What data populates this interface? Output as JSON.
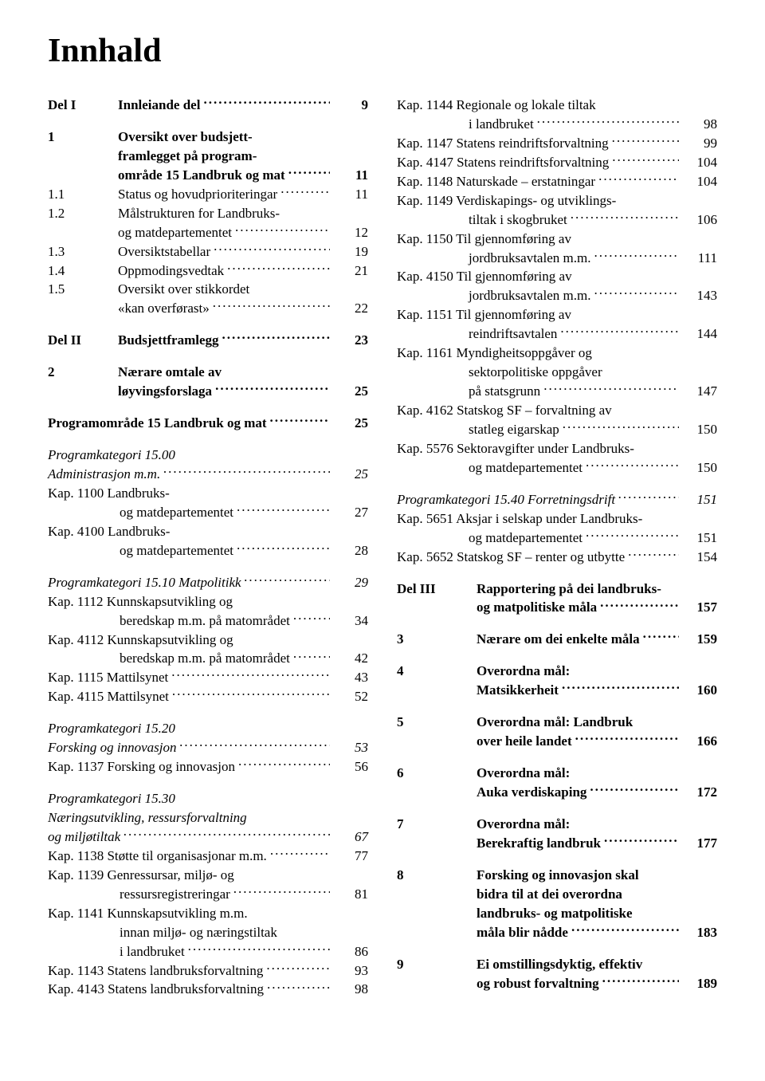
{
  "title": "Innhald",
  "left": [
    {
      "type": "row",
      "cls": "bold",
      "prefix": "Del I",
      "prefixCls": "prefix",
      "text": "Innleiande del",
      "page": "9"
    },
    {
      "type": "spacer"
    },
    {
      "type": "row",
      "cls": "bold",
      "prefix": "1",
      "prefixCls": "prefix",
      "text": "Oversikt over budsjett-",
      "noPage": true
    },
    {
      "type": "row",
      "cls": "bold indent-cont",
      "text": "framlegget på program-",
      "noPage": true
    },
    {
      "type": "row",
      "cls": "bold indent-cont",
      "text": "område 15 Landbruk og mat",
      "page": "11"
    },
    {
      "type": "row",
      "prefix": "1.1",
      "prefixCls": "prefix",
      "text": "Status og hovudprioriteringar",
      "page": "11"
    },
    {
      "type": "row",
      "prefix": "1.2",
      "prefixCls": "prefix",
      "text": "Målstrukturen for Landbruks-",
      "noPage": true
    },
    {
      "type": "row",
      "cls": "indent-cont",
      "text": "og matdepartementet",
      "page": "12"
    },
    {
      "type": "row",
      "prefix": "1.3",
      "prefixCls": "prefix",
      "text": "Oversiktstabellar",
      "page": "19"
    },
    {
      "type": "row",
      "prefix": "1.4",
      "prefixCls": "prefix",
      "text": "Oppmodingsvedtak",
      "page": "21"
    },
    {
      "type": "row",
      "prefix": "1.5",
      "prefixCls": "prefix",
      "text": "Oversikt over stikkordet",
      "noPage": true
    },
    {
      "type": "row",
      "cls": "indent-cont",
      "text": "«kan overførast»",
      "page": "22"
    },
    {
      "type": "spacer"
    },
    {
      "type": "row",
      "cls": "bold",
      "prefix": "Del II",
      "prefixCls": "prefix",
      "text": "Budsjettframlegg",
      "page": "23"
    },
    {
      "type": "spacer"
    },
    {
      "type": "row",
      "cls": "bold",
      "prefix": "2",
      "prefixCls": "prefix",
      "text": "Nærare omtale av",
      "noPage": true
    },
    {
      "type": "row",
      "cls": "bold indent-cont",
      "text": "løyvingsforslaga",
      "page": "25"
    },
    {
      "type": "spacer"
    },
    {
      "type": "row",
      "cls": "bold",
      "text": "Programområde 15 Landbruk og mat",
      "page": "25"
    },
    {
      "type": "spacer"
    },
    {
      "type": "row",
      "cls": "italic",
      "text": "Programkategori 15.00",
      "noPage": true
    },
    {
      "type": "row",
      "cls": "italic",
      "text": "Administrasjon m.m.",
      "page": "25"
    },
    {
      "type": "row",
      "text": "Kap. 1100 Landbruks-",
      "noPage": true
    },
    {
      "type": "row",
      "cls": "indent-kap",
      "text": "og matdepartementet",
      "page": "27"
    },
    {
      "type": "row",
      "text": "Kap. 4100 Landbruks-",
      "noPage": true
    },
    {
      "type": "row",
      "cls": "indent-kap",
      "text": "og matdepartementet",
      "page": "28"
    },
    {
      "type": "spacer"
    },
    {
      "type": "row",
      "cls": "italic",
      "text": "Programkategori 15.10 Matpolitikk",
      "page": "29"
    },
    {
      "type": "row",
      "text": "Kap. 1112 Kunnskapsutvikling og",
      "noPage": true
    },
    {
      "type": "row",
      "cls": "indent-kap",
      "text": "beredskap m.m. på matområdet",
      "page": "34"
    },
    {
      "type": "row",
      "text": "Kap. 4112 Kunnskapsutvikling og",
      "noPage": true
    },
    {
      "type": "row",
      "cls": "indent-kap",
      "text": "beredskap m.m. på matområdet",
      "page": "42"
    },
    {
      "type": "row",
      "text": "Kap. 1115 Mattilsynet",
      "page": "43"
    },
    {
      "type": "row",
      "text": "Kap. 4115 Mattilsynet",
      "page": "52"
    },
    {
      "type": "spacer"
    },
    {
      "type": "row",
      "cls": "italic",
      "text": "Programkategori 15.20",
      "noPage": true
    },
    {
      "type": "row",
      "cls": "italic",
      "text": "Forsking og innovasjon",
      "page": "53"
    },
    {
      "type": "row",
      "text": "Kap. 1137 Forsking og innovasjon",
      "page": "56"
    },
    {
      "type": "spacer"
    },
    {
      "type": "row",
      "cls": "italic",
      "text": "Programkategori 15.30",
      "noPage": true
    },
    {
      "type": "row",
      "cls": "italic",
      "text": "Næringsutvikling, ressursforvaltning",
      "noPage": true
    },
    {
      "type": "row",
      "cls": "italic",
      "text": "og miljøtiltak",
      "page": "67"
    },
    {
      "type": "row",
      "text": "Kap. 1138 Støtte til organisasjonar m.m.",
      "page": "77"
    },
    {
      "type": "row",
      "text": "Kap. 1139 Genressursar, miljø- og",
      "noPage": true
    },
    {
      "type": "row",
      "cls": "indent-kap",
      "text": "ressursregistreringar",
      "page": "81"
    },
    {
      "type": "row",
      "text": "Kap. 1141 Kunnskapsutvikling m.m.",
      "noPage": true
    },
    {
      "type": "row",
      "cls": "indent-kap",
      "text": "innan miljø- og næringstiltak",
      "noPage": true
    },
    {
      "type": "row",
      "cls": "indent-kap",
      "text": "i landbruket",
      "page": "86"
    },
    {
      "type": "row",
      "text": "Kap. 1143 Statens landbruksforvaltning",
      "page": "93"
    },
    {
      "type": "row",
      "text": "Kap. 4143 Statens landbruksforvaltning",
      "page": "98"
    }
  ],
  "right": [
    {
      "type": "row",
      "text": "Kap. 1144 Regionale og lokale tiltak",
      "noPage": true
    },
    {
      "type": "row",
      "cls": "indent-kap",
      "text": "i landbruket",
      "page": "98"
    },
    {
      "type": "row",
      "text": "Kap. 1147 Statens reindriftsforvaltning",
      "page": "99"
    },
    {
      "type": "row",
      "text": "Kap. 4147 Statens reindriftsforvaltning",
      "page": "104"
    },
    {
      "type": "row",
      "text": "Kap. 1148 Naturskade – erstatningar",
      "page": "104"
    },
    {
      "type": "row",
      "text": "Kap. 1149 Verdiskapings- og utviklings-",
      "noPage": true
    },
    {
      "type": "row",
      "cls": "indent-kap",
      "text": "tiltak i skogbruket",
      "page": "106"
    },
    {
      "type": "row",
      "text": "Kap. 1150 Til gjennomføring av",
      "noPage": true
    },
    {
      "type": "row",
      "cls": "indent-kap",
      "text": "jordbruksavtalen m.m.",
      "page": "111"
    },
    {
      "type": "row",
      "text": "Kap. 4150 Til gjennomføring av",
      "noPage": true
    },
    {
      "type": "row",
      "cls": "indent-kap",
      "text": "jordbruksavtalen m.m.",
      "page": "143"
    },
    {
      "type": "row",
      "text": "Kap. 1151 Til gjennomføring av",
      "noPage": true
    },
    {
      "type": "row",
      "cls": "indent-kap",
      "text": "reindriftsavtalen",
      "page": "144"
    },
    {
      "type": "row",
      "text": "Kap. 1161 Myndigheitsoppgåver og",
      "noPage": true
    },
    {
      "type": "row",
      "cls": "indent-kap",
      "text": "sektorpolitiske oppgåver",
      "noPage": true
    },
    {
      "type": "row",
      "cls": "indent-kap",
      "text": "på statsgrunn",
      "page": "147"
    },
    {
      "type": "row",
      "text": "Kap. 4162 Statskog SF – forvaltning av",
      "noPage": true
    },
    {
      "type": "row",
      "cls": "indent-kap",
      "text": "statleg eigarskap",
      "page": "150"
    },
    {
      "type": "row",
      "text": "Kap. 5576 Sektoravgifter under Landbruks-",
      "noPage": true
    },
    {
      "type": "row",
      "cls": "indent-kap",
      "text": "og matdepartementet",
      "page": "150"
    },
    {
      "type": "spacer"
    },
    {
      "type": "row",
      "cls": "italic",
      "text": "Programkategori 15.40 Forretningsdrift",
      "page": "151"
    },
    {
      "type": "row",
      "text": "Kap. 5651 Aksjar i selskap under Landbruks-",
      "noPage": true
    },
    {
      "type": "row",
      "cls": "indent-kap",
      "text": "og matdepartementet",
      "page": "151"
    },
    {
      "type": "row",
      "text": "Kap. 5652 Statskog SF – renter og utbytte",
      "page": "154"
    },
    {
      "type": "spacer"
    },
    {
      "type": "row",
      "cls": "bold",
      "prefix": "Del III",
      "prefixCls": "prefix-wide",
      "text": "Rapportering på dei landbruks-",
      "noPage": true
    },
    {
      "type": "row",
      "cls": "bold indent-cont-wide",
      "text": "og matpolitiske måla",
      "page": "157"
    },
    {
      "type": "spacer"
    },
    {
      "type": "row",
      "cls": "bold",
      "prefix": "3",
      "prefixCls": "prefix-wide",
      "text": "Nærare om dei enkelte måla",
      "page": "159"
    },
    {
      "type": "spacer"
    },
    {
      "type": "row",
      "cls": "bold",
      "prefix": "4",
      "prefixCls": "prefix-wide",
      "text": "Overordna mål:",
      "noPage": true
    },
    {
      "type": "row",
      "cls": "bold indent-cont-wide",
      "text": "Matsikkerheit",
      "page": "160"
    },
    {
      "type": "spacer"
    },
    {
      "type": "row",
      "cls": "bold",
      "prefix": "5",
      "prefixCls": "prefix-wide",
      "text": "Overordna mål: Landbruk",
      "noPage": true
    },
    {
      "type": "row",
      "cls": "bold indent-cont-wide",
      "text": "over heile landet",
      "page": "166"
    },
    {
      "type": "spacer"
    },
    {
      "type": "row",
      "cls": "bold",
      "prefix": "6",
      "prefixCls": "prefix-wide",
      "text": "Overordna mål:",
      "noPage": true
    },
    {
      "type": "row",
      "cls": "bold indent-cont-wide",
      "text": "Auka verdiskaping",
      "page": "172"
    },
    {
      "type": "spacer"
    },
    {
      "type": "row",
      "cls": "bold",
      "prefix": "7",
      "prefixCls": "prefix-wide",
      "text": "Overordna mål:",
      "noPage": true
    },
    {
      "type": "row",
      "cls": "bold indent-cont-wide",
      "text": "Berekraftig landbruk",
      "page": "177"
    },
    {
      "type": "spacer"
    },
    {
      "type": "row",
      "cls": "bold",
      "prefix": "8",
      "prefixCls": "prefix-wide",
      "text": "Forsking og innovasjon skal",
      "noPage": true
    },
    {
      "type": "row",
      "cls": "bold indent-cont-wide",
      "text": "bidra til at dei overordna",
      "noPage": true
    },
    {
      "type": "row",
      "cls": "bold indent-cont-wide",
      "text": "landbruks- og matpolitiske",
      "noPage": true
    },
    {
      "type": "row",
      "cls": "bold indent-cont-wide",
      "text": "måla blir nådde",
      "page": "183"
    },
    {
      "type": "spacer"
    },
    {
      "type": "row",
      "cls": "bold",
      "prefix": "9",
      "prefixCls": "prefix-wide",
      "text": "Ei omstillingsdyktig, effektiv",
      "noPage": true
    },
    {
      "type": "row",
      "cls": "bold indent-cont-wide",
      "text": "og robust forvaltning",
      "page": "189"
    }
  ]
}
